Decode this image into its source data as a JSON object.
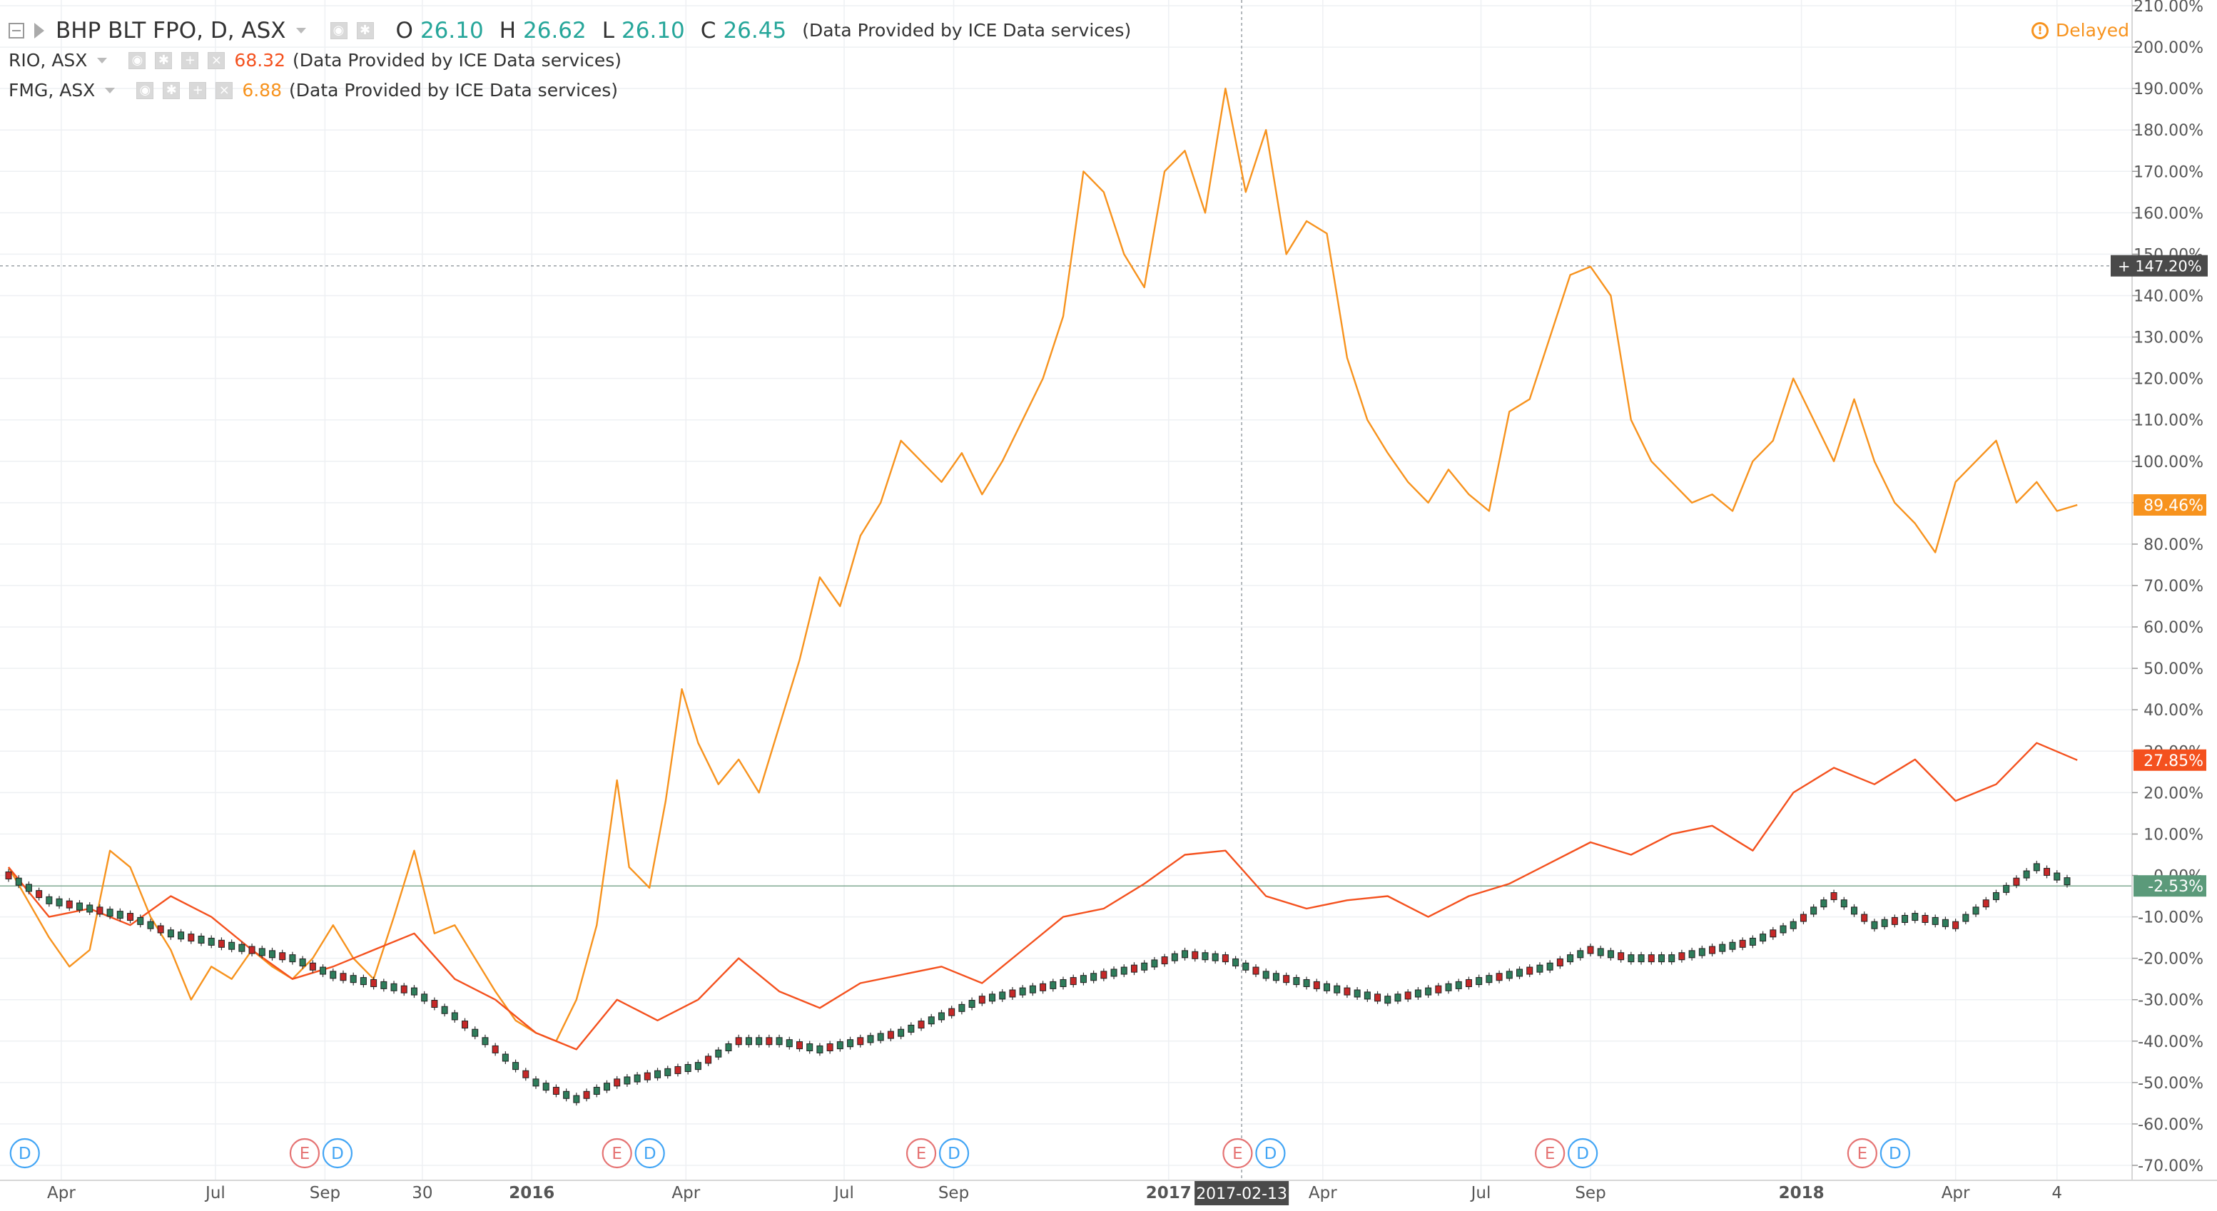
{
  "legend": {
    "main": {
      "symbol": "BHP BLT FPO, D, ASX",
      "o_key": "O",
      "o": "26.10",
      "h_key": "H",
      "h": "26.62",
      "l_key": "L",
      "l": "26.10",
      "c_key": "C",
      "c": "26.45",
      "provider": "(Data Provided by ICE Data services)"
    },
    "rio": {
      "symbol": "RIO, ASX",
      "value": "68.32",
      "provider": "(Data Provided by ICE Data services)",
      "color": "#f4511e"
    },
    "fmg": {
      "symbol": "FMG, ASX",
      "value": "6.88",
      "provider": "(Data Provided by ICE Data services)",
      "color": "#f7931e"
    }
  },
  "status": {
    "delayed": "Delayed",
    "icon": "alert-circle-icon"
  },
  "crosshair": {
    "price_label": "147.20%",
    "date_label": "2017-02-13"
  },
  "markers": {
    "dividend": "D",
    "earnings": "E"
  },
  "colors": {
    "rio": "#f4511e",
    "fmg": "#f7931e",
    "bhp_up": "#2e7d5b",
    "bhp_down": "#c62828",
    "grid": "#eef0f3",
    "axis_text": "#555555"
  },
  "chart_data": {
    "type": "line",
    "title": "BHP BLT FPO, D, ASX",
    "scale": "percent",
    "ylim": [
      -70,
      210
    ],
    "y_ticks": [
      "210.00%",
      "200.00%",
      "190.00%",
      "180.00%",
      "170.00%",
      "160.00%",
      "150.00%",
      "140.00%",
      "130.00%",
      "120.00%",
      "110.00%",
      "100.00%",
      "90.00%",
      "80.00%",
      "70.00%",
      "60.00%",
      "50.00%",
      "40.00%",
      "30.00%",
      "20.00%",
      "10.00%",
      "0.00%",
      "-10.00%",
      "-20.00%",
      "-30.00%",
      "-40.00%",
      "-50.00%",
      "-60.00%",
      "-70.00%"
    ],
    "x_ticks": [
      "Apr",
      "Jul",
      "Sep",
      "30",
      "2016",
      "Apr",
      "Jul",
      "Sep",
      "2017",
      "Apr",
      "Jul",
      "Sep",
      "2018",
      "Apr",
      "4"
    ],
    "x_ticks_bold": [
      "2016",
      "2017",
      "2018"
    ],
    "grid": true,
    "last_value_labels": [
      {
        "series": "FMG, ASX",
        "label": "89.46%",
        "color": "#f7931e"
      },
      {
        "series": "RIO, ASX",
        "label": "27.85%",
        "color": "#f4511e"
      },
      {
        "series": "BHP BLT FPO, D, ASX",
        "label": "-2.53%",
        "color": "#5b9a7a"
      }
    ],
    "event_markers": [
      {
        "x": 0.4,
        "types": [
          "D"
        ]
      },
      {
        "x": 7.3,
        "types": [
          "E",
          "D"
        ]
      },
      {
        "x": 15.0,
        "types": [
          "E",
          "D"
        ]
      },
      {
        "x": 22.5,
        "types": [
          "E",
          "D"
        ]
      },
      {
        "x": 30.3,
        "types": [
          "E",
          "D"
        ]
      },
      {
        "x": 38.0,
        "types": [
          "E",
          "D"
        ]
      },
      {
        "x": 45.7,
        "types": [
          "E",
          "D"
        ]
      }
    ],
    "x_tick_positions": [
      1.3,
      5.1,
      7.8,
      10.2,
      12.9,
      16.7,
      20.6,
      23.3,
      28.6,
      32.4,
      36.3,
      39.0,
      44.2,
      48.0,
      50.5
    ],
    "x_range": [
      0,
      52
    ],
    "series": [
      {
        "name": "FMG, ASX",
        "color": "#f7931e",
        "x": [
          0,
          1,
          1.5,
          2,
          2.5,
          3,
          3.5,
          4,
          4.5,
          5,
          5.5,
          6,
          6.5,
          7,
          7.5,
          8,
          8.5,
          9,
          9.5,
          10,
          10.5,
          11,
          11.5,
          12,
          12.5,
          13,
          13.5,
          14,
          14.5,
          15,
          15.3,
          15.8,
          16.2,
          16.6,
          17,
          17.5,
          18,
          18.5,
          19,
          19.5,
          20,
          20.5,
          21,
          21.5,
          22,
          22.5,
          23,
          23.5,
          24,
          24.5,
          25,
          25.5,
          26,
          26.5,
          27,
          27.5,
          28,
          28.5,
          29,
          29.5,
          30,
          30.5,
          31,
          31.5,
          32,
          32.5,
          33,
          33.5,
          34,
          34.5,
          35,
          35.5,
          36,
          36.5,
          37,
          37.5,
          38,
          38.5,
          39,
          39.5,
          40,
          40.5,
          41,
          41.5,
          42,
          42.5,
          43,
          43.5,
          44,
          44.5,
          45,
          45.5,
          46,
          46.5,
          47,
          47.5,
          48,
          48.5,
          49,
          49.5,
          50,
          50.5,
          51
        ],
        "values": [
          2,
          -15,
          -22,
          -18,
          6,
          2,
          -10,
          -18,
          -30,
          -22,
          -25,
          -18,
          -22,
          -25,
          -20,
          -12,
          -20,
          -25,
          -10,
          6,
          -14,
          -12,
          -20,
          -28,
          -35,
          -38,
          -40,
          -30,
          -12,
          23,
          2,
          -3,
          18,
          45,
          32,
          22,
          28,
          20,
          36,
          52,
          72,
          65,
          82,
          90,
          105,
          100,
          95,
          102,
          92,
          100,
          110,
          120,
          135,
          170,
          165,
          150,
          142,
          170,
          175,
          160,
          190,
          165,
          180,
          150,
          158,
          155,
          125,
          110,
          102,
          95,
          90,
          98,
          92,
          88,
          112,
          115,
          130,
          145,
          147,
          140,
          110,
          100,
          95,
          90,
          92,
          88,
          100,
          105,
          120,
          110,
          100,
          115,
          100,
          90,
          85,
          78,
          95,
          100,
          105,
          90,
          95,
          88,
          89.46
        ]
      },
      {
        "name": "RIO, ASX",
        "color": "#f4511e",
        "x": [
          0,
          1,
          2,
          3,
          4,
          5,
          6,
          7,
          8,
          9,
          10,
          11,
          12,
          13,
          14,
          15,
          16,
          17,
          18,
          19,
          20,
          21,
          22,
          23,
          24,
          25,
          26,
          27,
          28,
          29,
          30,
          31,
          32,
          33,
          34,
          35,
          36,
          37,
          38,
          39,
          40,
          41,
          42,
          43,
          44,
          45,
          46,
          47,
          48,
          49,
          50,
          51
        ],
        "values": [
          2,
          -10,
          -8,
          -12,
          -5,
          -10,
          -18,
          -25,
          -22,
          -18,
          -14,
          -25,
          -30,
          -38,
          -42,
          -30,
          -35,
          -30,
          -20,
          -28,
          -32,
          -26,
          -24,
          -22,
          -26,
          -18,
          -10,
          -8,
          -2,
          5,
          6,
          -5,
          -8,
          -6,
          -5,
          -10,
          -5,
          -2,
          3,
          8,
          5,
          10,
          12,
          6,
          20,
          26,
          22,
          28,
          18,
          22,
          32,
          27.85
        ]
      },
      {
        "name": "BHP BLT FPO, D, ASX",
        "color": "#2e7d5b",
        "x": [
          0,
          1,
          2,
          3,
          4,
          5,
          6,
          7,
          8,
          9,
          10,
          11,
          12,
          13,
          14,
          15,
          16,
          17,
          18,
          19,
          20,
          21,
          22,
          23,
          24,
          25,
          26,
          27,
          28,
          29,
          30,
          31,
          32,
          33,
          34,
          35,
          36,
          37,
          38,
          39,
          40,
          41,
          42,
          43,
          44,
          45,
          46,
          47,
          48,
          49,
          50,
          51
        ],
        "values": [
          0,
          -6,
          -8,
          -10,
          -14,
          -16,
          -18,
          -20,
          -24,
          -26,
          -28,
          -34,
          -42,
          -50,
          -54,
          -50,
          -48,
          -46,
          -40,
          -40,
          -42,
          -40,
          -38,
          -34,
          -30,
          -28,
          -26,
          -24,
          -22,
          -19,
          -20,
          -24,
          -26,
          -28,
          -30,
          -28,
          -26,
          -24,
          -22,
          -18,
          -20,
          -20,
          -18,
          -16,
          -12,
          -5,
          -12,
          -10,
          -12,
          -5,
          2,
          -2.53
        ]
      }
    ]
  }
}
